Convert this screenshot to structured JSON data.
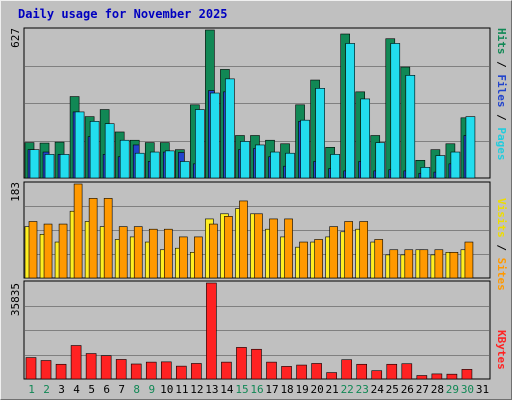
{
  "title": "Daily usage for November 2025",
  "colors": {
    "background": "#c0c0c0",
    "pages": "#22ddee",
    "files": "#2244cc",
    "hits": "#118855",
    "visits": "#ffee22",
    "sites": "#ff9900",
    "kbytes": "#ff2222",
    "weekend_day": "#118855",
    "weekday": "#000000"
  },
  "right_labels": {
    "pages": "Pages",
    "files": "Files",
    "hits": "Hits",
    "sep": " / ",
    "visits": "Visits",
    "sites": "Sites",
    "kbytes": "KBytes"
  },
  "chart_data": [
    {
      "type": "bar",
      "panel": "hits-files-pages",
      "y_max_label": "627",
      "ylim": [
        0,
        627
      ],
      "categories": [
        "1",
        "2",
        "3",
        "4",
        "5",
        "6",
        "7",
        "8",
        "9",
        "10",
        "11",
        "12",
        "13",
        "14",
        "15",
        "16",
        "17",
        "18",
        "19",
        "20",
        "21",
        "22",
        "23",
        "24",
        "25",
        "26",
        "27",
        "28",
        "29",
        "30",
        "31"
      ],
      "series": [
        {
          "name": "Hits",
          "values": [
            150,
            148,
            152,
            345,
            260,
            290,
            195,
            160,
            150,
            150,
            120,
            310,
            627,
            460,
            180,
            180,
            160,
            145,
            310,
            415,
            130,
            610,
            365,
            180,
            590,
            470,
            75,
            120,
            145,
            255,
            0
          ]
        },
        {
          "name": "Files",
          "values": [
            120,
            110,
            100,
            280,
            175,
            100,
            90,
            140,
            70,
            110,
            108,
            60,
            370,
            365,
            120,
            125,
            90,
            50,
            240,
            70,
            40,
            30,
            70,
            30,
            35,
            30,
            20,
            25,
            60,
            180,
            0
          ]
        },
        {
          "name": "Pages",
          "values": [
            120,
            100,
            100,
            280,
            240,
            230,
            160,
            105,
            110,
            115,
            70,
            290,
            360,
            420,
            155,
            140,
            110,
            105,
            245,
            380,
            100,
            570,
            335,
            150,
            570,
            435,
            45,
            95,
            110,
            260,
            0
          ]
        }
      ]
    },
    {
      "type": "bar",
      "panel": "visits-sites",
      "y_max_label": "183",
      "ylim": [
        0,
        183
      ],
      "categories": [
        "1",
        "2",
        "3",
        "4",
        "5",
        "6",
        "7",
        "8",
        "9",
        "10",
        "11",
        "12",
        "13",
        "14",
        "15",
        "16",
        "17",
        "18",
        "19",
        "20",
        "21",
        "22",
        "23",
        "24",
        "25",
        "26",
        "27",
        "28",
        "29",
        "30",
        "31"
      ],
      "series": [
        {
          "name": "Visits",
          "values": [
            100,
            85,
            70,
            130,
            110,
            100,
            75,
            80,
            70,
            55,
            58,
            50,
            115,
            125,
            135,
            125,
            95,
            80,
            60,
            70,
            80,
            90,
            95,
            70,
            45,
            45,
            55,
            45,
            50,
            55,
            0
          ]
        },
        {
          "name": "Sites",
          "values": [
            110,
            105,
            105,
            183,
            155,
            155,
            100,
            100,
            95,
            95,
            80,
            80,
            105,
            120,
            150,
            125,
            115,
            115,
            70,
            75,
            100,
            110,
            110,
            75,
            55,
            55,
            55,
            55,
            50,
            70,
            0
          ]
        }
      ]
    },
    {
      "type": "bar",
      "panel": "kbytes",
      "y_max_label": "35835",
      "ylim": [
        0,
        35835
      ],
      "categories": [
        "1",
        "2",
        "3",
        "4",
        "5",
        "6",
        "7",
        "8",
        "9",
        "10",
        "11",
        "12",
        "13",
        "14",
        "15",
        "16",
        "17",
        "18",
        "19",
        "20",
        "21",
        "22",
        "23",
        "24",
        "25",
        "26",
        "27",
        "28",
        "29",
        "30",
        "31"
      ],
      "series": [
        {
          "name": "KBytes",
          "values": [
            8000,
            6900,
            5500,
            12500,
            9500,
            8700,
            7300,
            5600,
            6300,
            6400,
            4800,
            5800,
            35835,
            6300,
            11800,
            11100,
            6300,
            4700,
            5200,
            5800,
            2400,
            7200,
            5500,
            3100,
            5500,
            5700,
            1300,
            1900,
            1800,
            3600,
            0
          ]
        }
      ]
    }
  ],
  "day_labels": [
    "1",
    "2",
    "3",
    "4",
    "5",
    "6",
    "7",
    "8",
    "9",
    "10",
    "11",
    "12",
    "13",
    "14",
    "15",
    "16",
    "17",
    "18",
    "19",
    "20",
    "21",
    "22",
    "23",
    "24",
    "25",
    "26",
    "27",
    "28",
    "29",
    "30",
    "31"
  ],
  "weekend_days": [
    "1",
    "2",
    "8",
    "9",
    "15",
    "16",
    "22",
    "23",
    "29",
    "30"
  ]
}
